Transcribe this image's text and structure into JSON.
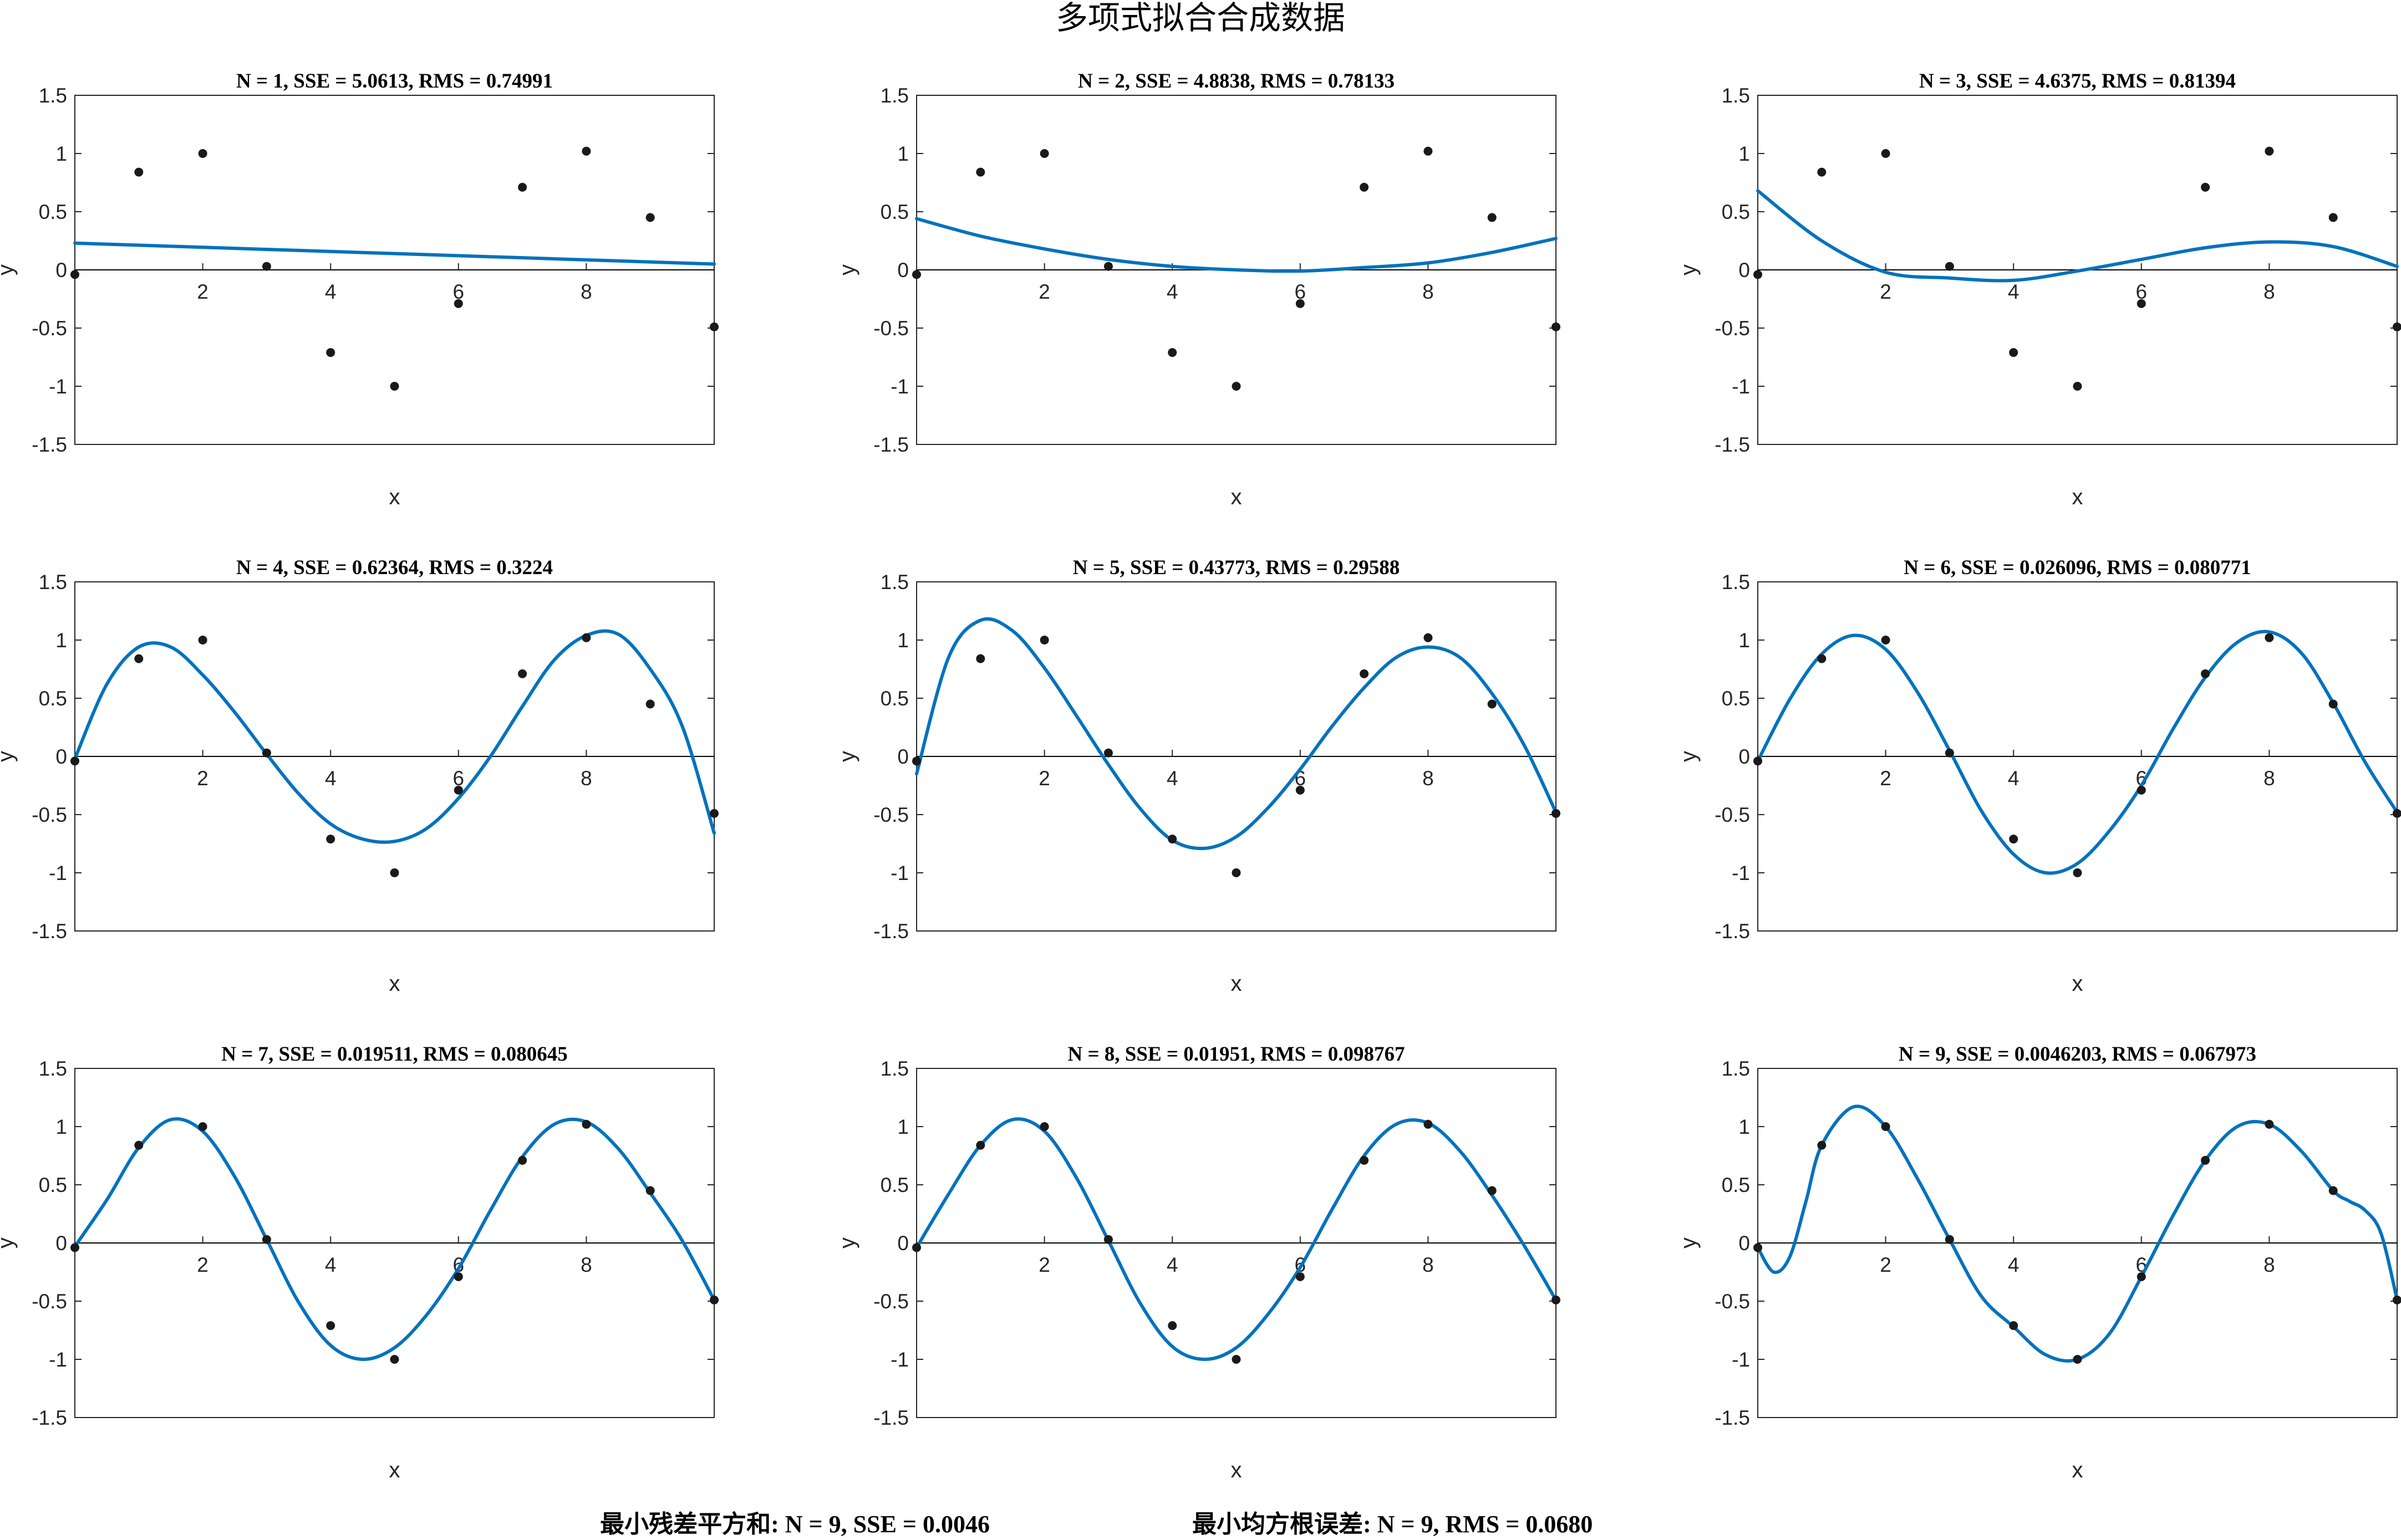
{
  "figure": {
    "title": "多项式拟合合成数据",
    "summary_sse": "最小残差平方和: N = 9, SSE = 0.0046",
    "summary_rms": "最小均方根误差: N = 9, RMS = 0.0680"
  },
  "colors": {
    "fit_line": "#0072BD",
    "data_points": "#1a1a1a",
    "axes": "#262626",
    "zero_line": "#000000"
  },
  "chart_data": [
    {
      "type": "line",
      "title": "N = 1, SSE = 5.0613, RMS = 0.74991",
      "degree": 1,
      "xlabel": "x",
      "ylabel": "y",
      "xlim": [
        0,
        10
      ],
      "ylim": [
        -1.5,
        1.5
      ],
      "xticks": [
        2,
        4,
        6,
        8
      ],
      "yticks": [
        -1.5,
        -1,
        -0.5,
        0,
        0.5,
        1,
        1.5
      ],
      "ytick_labels": [
        "-1.5",
        "-1",
        "-0.5",
        "0",
        "0.5",
        "1",
        "1.5"
      ],
      "points": {
        "x": [
          0,
          1,
          2,
          3,
          4,
          5,
          6,
          7,
          8,
          9,
          10
        ],
        "y": [
          -0.04,
          0.84,
          1.0,
          0.03,
          -0.71,
          -1.0,
          -0.29,
          0.71,
          1.02,
          0.45,
          -0.49
        ]
      },
      "fit_curve": {
        "x": [
          0,
          10
        ],
        "y": [
          0.23,
          0.05
        ]
      }
    },
    {
      "type": "line",
      "title": "N = 2, SSE = 4.8838, RMS = 0.78133",
      "degree": 2,
      "xlabel": "x",
      "ylabel": "y",
      "xlim": [
        0,
        10
      ],
      "ylim": [
        -1.5,
        1.5
      ],
      "xticks": [
        2,
        4,
        6,
        8
      ],
      "yticks": [
        -1.5,
        -1,
        -0.5,
        0,
        0.5,
        1,
        1.5
      ],
      "ytick_labels": [
        "-1.5",
        "-1",
        "-0.5",
        "0",
        "0.5",
        "1",
        "1.5"
      ],
      "points": {
        "x": [
          0,
          1,
          2,
          3,
          4,
          5,
          6,
          7,
          8,
          9,
          10
        ],
        "y": [
          -0.04,
          0.84,
          1.0,
          0.03,
          -0.71,
          -1.0,
          -0.29,
          0.71,
          1.02,
          0.45,
          -0.49
        ]
      },
      "fit_curve": {
        "x": [
          0,
          1,
          2,
          3,
          4,
          5,
          6,
          7,
          8,
          9,
          10
        ],
        "y": [
          0.44,
          0.29,
          0.18,
          0.09,
          0.03,
          0.0,
          -0.01,
          0.02,
          0.06,
          0.15,
          0.27
        ]
      }
    },
    {
      "type": "line",
      "title": "N = 3, SSE = 4.6375, RMS = 0.81394",
      "degree": 3,
      "xlabel": "x",
      "ylabel": "y",
      "xlim": [
        0,
        10
      ],
      "ylim": [
        -1.5,
        1.5
      ],
      "xticks": [
        2,
        4,
        6,
        8
      ],
      "yticks": [
        -1.5,
        -1,
        -0.5,
        0,
        0.5,
        1,
        1.5
      ],
      "ytick_labels": [
        "-1.5",
        "-1",
        "-0.5",
        "0",
        "0.5",
        "1",
        "1.5"
      ],
      "points": {
        "x": [
          0,
          1,
          2,
          3,
          4,
          5,
          6,
          7,
          8,
          9,
          10
        ],
        "y": [
          -0.04,
          0.84,
          1.0,
          0.03,
          -0.71,
          -1.0,
          -0.29,
          0.71,
          1.02,
          0.45,
          -0.49
        ]
      },
      "fit_curve": {
        "x": [
          0,
          1,
          2,
          3,
          4,
          5,
          6,
          7,
          8,
          9,
          10
        ],
        "y": [
          0.68,
          0.25,
          -0.02,
          -0.07,
          -0.09,
          -0.01,
          0.09,
          0.19,
          0.24,
          0.2,
          0.03
        ]
      }
    },
    {
      "type": "line",
      "title": "N = 4, SSE = 0.62364, RMS = 0.3224",
      "degree": 4,
      "xlabel": "x",
      "ylabel": "y",
      "xlim": [
        0,
        10
      ],
      "ylim": [
        -1.5,
        1.5
      ],
      "xticks": [
        2,
        4,
        6,
        8
      ],
      "yticks": [
        -1.5,
        -1,
        -0.5,
        0,
        0.5,
        1,
        1.5
      ],
      "ytick_labels": [
        "-1.5",
        "-1",
        "-0.5",
        "0",
        "0.5",
        "1",
        "1.5"
      ],
      "points": {
        "x": [
          0,
          1,
          2,
          3,
          4,
          5,
          6,
          7,
          8,
          9,
          10
        ],
        "y": [
          -0.04,
          0.84,
          1.0,
          0.03,
          -0.71,
          -1.0,
          -0.29,
          0.71,
          1.02,
          0.45,
          -0.49
        ]
      },
      "fit_curve": {
        "x": [
          0,
          0.5,
          1,
          1.5,
          2,
          2.5,
          3,
          3.5,
          4,
          4.5,
          5,
          5.5,
          6,
          6.5,
          7,
          7.5,
          8,
          8.5,
          9,
          9.5,
          10
        ],
        "y": [
          -0.02,
          0.62,
          0.94,
          0.94,
          0.7,
          0.38,
          0.02,
          -0.32,
          -0.58,
          -0.71,
          -0.73,
          -0.62,
          -0.36,
          0.0,
          0.43,
          0.83,
          1.04,
          1.05,
          0.75,
          0.26,
          -0.66
        ]
      }
    },
    {
      "type": "line",
      "title": "N = 5, SSE = 0.43773, RMS = 0.29588",
      "degree": 5,
      "xlabel": "x",
      "ylabel": "y",
      "xlim": [
        0,
        10
      ],
      "ylim": [
        -1.5,
        1.5
      ],
      "xticks": [
        2,
        4,
        6,
        8
      ],
      "yticks": [
        -1.5,
        -1,
        -0.5,
        0,
        0.5,
        1,
        1.5
      ],
      "ytick_labels": [
        "-1.5",
        "-1",
        "-0.5",
        "0",
        "0.5",
        "1",
        "1.5"
      ],
      "points": {
        "x": [
          0,
          1,
          2,
          3,
          4,
          5,
          6,
          7,
          8,
          9,
          10
        ],
        "y": [
          -0.04,
          0.84,
          1.0,
          0.03,
          -0.71,
          -1.0,
          -0.29,
          0.71,
          1.02,
          0.45,
          -0.49
        ]
      },
      "fit_curve": {
        "x": [
          0,
          0.5,
          1,
          1.5,
          2,
          2.5,
          3,
          3.5,
          4,
          4.5,
          5,
          5.5,
          6,
          6.5,
          7,
          7.5,
          8,
          8.5,
          9,
          9.5,
          10
        ],
        "y": [
          -0.15,
          0.85,
          1.17,
          1.08,
          0.76,
          0.35,
          -0.07,
          -0.45,
          -0.72,
          -0.79,
          -0.69,
          -0.44,
          -0.11,
          0.26,
          0.59,
          0.85,
          0.94,
          0.85,
          0.54,
          0.1,
          -0.48
        ]
      }
    },
    {
      "type": "line",
      "title": "N = 6, SSE = 0.026096, RMS = 0.080771",
      "degree": 6,
      "xlabel": "x",
      "ylabel": "y",
      "xlim": [
        0,
        10
      ],
      "ylim": [
        -1.5,
        1.5
      ],
      "xticks": [
        2,
        4,
        6,
        8
      ],
      "yticks": [
        -1.5,
        -1,
        -0.5,
        0,
        0.5,
        1,
        1.5
      ],
      "ytick_labels": [
        "-1.5",
        "-1",
        "-0.5",
        "0",
        "0.5",
        "1",
        "1.5"
      ],
      "points": {
        "x": [
          0,
          1,
          2,
          3,
          4,
          5,
          6,
          7,
          8,
          9,
          10
        ],
        "y": [
          -0.04,
          0.84,
          1.0,
          0.03,
          -0.71,
          -1.0,
          -0.29,
          0.71,
          1.02,
          0.45,
          -0.49
        ]
      },
      "fit_curve": {
        "x": [
          0,
          0.5,
          1,
          1.5,
          2,
          2.5,
          3,
          3.5,
          4,
          4.5,
          5,
          5.5,
          6,
          6.5,
          7,
          7.5,
          8,
          8.5,
          9,
          9.5,
          10
        ],
        "y": [
          -0.04,
          0.49,
          0.88,
          1.04,
          0.92,
          0.55,
          0.05,
          -0.47,
          -0.84,
          -1.0,
          -0.92,
          -0.64,
          -0.25,
          0.24,
          0.68,
          0.98,
          1.07,
          0.89,
          0.46,
          -0.05,
          -0.48
        ]
      }
    },
    {
      "type": "line",
      "title": "N = 7, SSE = 0.019511, RMS = 0.080645",
      "degree": 7,
      "xlabel": "x",
      "ylabel": "y",
      "xlim": [
        0,
        10
      ],
      "ylim": [
        -1.5,
        1.5
      ],
      "xticks": [
        2,
        4,
        6,
        8
      ],
      "yticks": [
        -1.5,
        -1,
        -0.5,
        0,
        0.5,
        1,
        1.5
      ],
      "ytick_labels": [
        "-1.5",
        "-1",
        "-0.5",
        "0",
        "0.5",
        "1",
        "1.5"
      ],
      "points": {
        "x": [
          0,
          1,
          2,
          3,
          4,
          5,
          6,
          7,
          8,
          9,
          10
        ],
        "y": [
          -0.04,
          0.84,
          1.0,
          0.03,
          -0.71,
          -1.0,
          -0.29,
          0.71,
          1.02,
          0.45,
          -0.49
        ]
      },
      "fit_curve": {
        "x": [
          0,
          0.5,
          1,
          1.5,
          2,
          2.5,
          3,
          3.5,
          4,
          4.5,
          5,
          5.5,
          6,
          6.5,
          7,
          7.5,
          8,
          8.5,
          9,
          9.5,
          10
        ],
        "y": [
          -0.03,
          0.37,
          0.82,
          1.06,
          0.96,
          0.57,
          0.03,
          -0.51,
          -0.88,
          -1.0,
          -0.9,
          -0.62,
          -0.22,
          0.28,
          0.74,
          1.02,
          1.04,
          0.81,
          0.43,
          0.02,
          -0.49
        ]
      }
    },
    {
      "type": "line",
      "title": "N = 8, SSE = 0.01951, RMS = 0.098767",
      "degree": 8,
      "xlabel": "x",
      "ylabel": "y",
      "xlim": [
        0,
        10
      ],
      "ylim": [
        -1.5,
        1.5
      ],
      "xticks": [
        2,
        4,
        6,
        8
      ],
      "yticks": [
        -1.5,
        -1,
        -0.5,
        0,
        0.5,
        1,
        1.5
      ],
      "ytick_labels": [
        "-1.5",
        "-1",
        "-0.5",
        "0",
        "0.5",
        "1",
        "1.5"
      ],
      "points": {
        "x": [
          0,
          1,
          2,
          3,
          4,
          5,
          6,
          7,
          8,
          9,
          10
        ],
        "y": [
          -0.04,
          0.84,
          1.0,
          0.03,
          -0.71,
          -1.0,
          -0.29,
          0.71,
          1.02,
          0.45,
          -0.49
        ]
      },
      "fit_curve": {
        "x": [
          0,
          0.5,
          1,
          1.5,
          2,
          2.5,
          3,
          3.5,
          4,
          4.5,
          5,
          5.5,
          6,
          6.5,
          7,
          7.5,
          8,
          8.5,
          9,
          9.5,
          10
        ],
        "y": [
          -0.04,
          0.42,
          0.84,
          1.06,
          0.96,
          0.56,
          0.02,
          -0.52,
          -0.89,
          -1.0,
          -0.9,
          -0.61,
          -0.21,
          0.29,
          0.75,
          1.02,
          1.03,
          0.79,
          0.41,
          -0.02,
          -0.49
        ]
      }
    },
    {
      "type": "line",
      "title": "N = 9, SSE = 0.0046203, RMS = 0.067973",
      "degree": 9,
      "xlabel": "x",
      "ylabel": "y",
      "xlim": [
        0,
        10
      ],
      "ylim": [
        -1.5,
        1.5
      ],
      "xticks": [
        2,
        4,
        6,
        8
      ],
      "yticks": [
        -1.5,
        -1,
        -0.5,
        0,
        0.5,
        1,
        1.5
      ],
      "ytick_labels": [
        "-1.5",
        "-1",
        "-0.5",
        "0",
        "0.5",
        "1",
        "1.5"
      ],
      "points": {
        "x": [
          0,
          1,
          2,
          3,
          4,
          5,
          6,
          7,
          8,
          9,
          10
        ],
        "y": [
          -0.04,
          0.84,
          1.0,
          0.03,
          -0.71,
          -1.0,
          -0.29,
          0.71,
          1.02,
          0.45,
          -0.49
        ]
      },
      "fit_curve": {
        "x": [
          0,
          0.25,
          0.5,
          0.75,
          1,
          1.5,
          2,
          2.5,
          3,
          3.5,
          4,
          4.5,
          5,
          5.5,
          6,
          6.5,
          7,
          7.5,
          8,
          8.5,
          9,
          9.25,
          9.5,
          9.75,
          10
        ],
        "y": [
          -0.04,
          -0.25,
          -0.12,
          0.35,
          0.84,
          1.17,
          1.0,
          0.55,
          0.03,
          -0.46,
          -0.72,
          -0.96,
          -1.0,
          -0.78,
          -0.29,
          0.24,
          0.71,
          1.0,
          1.02,
          0.79,
          0.45,
          0.36,
          0.28,
          0.08,
          -0.49
        ]
      }
    }
  ]
}
